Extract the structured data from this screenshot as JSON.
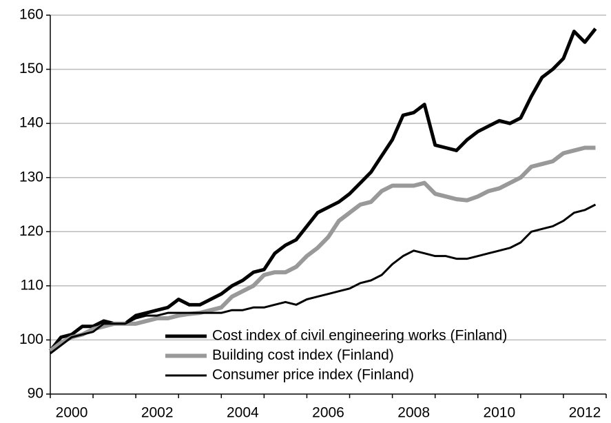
{
  "chart_data": {
    "type": "line",
    "x": [
      2000,
      2000.25,
      2000.5,
      2000.75,
      2001,
      2001.25,
      2001.5,
      2001.75,
      2002,
      2002.25,
      2002.5,
      2002.75,
      2003,
      2003.25,
      2003.5,
      2003.75,
      2004,
      2004.25,
      2004.5,
      2004.75,
      2005,
      2005.25,
      2005.5,
      2005.75,
      2006,
      2006.25,
      2006.5,
      2006.75,
      2007,
      2007.25,
      2007.5,
      2007.75,
      2008,
      2008.25,
      2008.5,
      2008.75,
      2009,
      2009.25,
      2009.5,
      2009.75,
      2010,
      2010.25,
      2010.5,
      2010.75,
      2011,
      2011.25,
      2011.5,
      2011.75,
      2012,
      2012.25,
      2012.5,
      2012.75
    ],
    "series": [
      {
        "name": "Cost index of civil engineering works (Finland)",
        "color": "#000000",
        "width": 5,
        "values": [
          98,
          100.5,
          101,
          102.5,
          102.5,
          103.5,
          103,
          103,
          104.5,
          105,
          105.5,
          106,
          107.5,
          106.5,
          106.5,
          107.5,
          108.5,
          110,
          111,
          112.5,
          113,
          116,
          117.5,
          118.5,
          121,
          123.5,
          124.5,
          125.5,
          127,
          129,
          131,
          134,
          137,
          141.5,
          142,
          143.5,
          136,
          135.5,
          135,
          137,
          138.5,
          139.5,
          140.5,
          140,
          141,
          145,
          148.5,
          150,
          152,
          157,
          155,
          157.5
        ]
      },
      {
        "name": "Building cost index (Finland)",
        "color": "#999999",
        "width": 6,
        "values": [
          98,
          99.5,
          100.5,
          101,
          102,
          102.5,
          103,
          103,
          103,
          103.5,
          104,
          104,
          104.5,
          104.8,
          105,
          105.5,
          106,
          108,
          109,
          110,
          112,
          112.5,
          112.5,
          113.5,
          115.5,
          117,
          119,
          122,
          123.5,
          125,
          125.5,
          127.5,
          128.5,
          128.5,
          128.5,
          129,
          127,
          126.5,
          126,
          125.8,
          126.5,
          127.5,
          128,
          129,
          130,
          132,
          132.5,
          133,
          134.5,
          135,
          135.5,
          135.5
        ]
      },
      {
        "name": "Consumer price index (Finland)",
        "color": "#000000",
        "width": 3,
        "values": [
          97.5,
          99,
          100.5,
          101,
          101.5,
          103,
          103,
          103,
          104,
          104.5,
          104.5,
          105,
          105,
          105,
          105,
          105,
          105,
          105.5,
          105.5,
          106,
          106,
          106.5,
          107,
          106.5,
          107.5,
          108,
          108.5,
          109,
          109.5,
          110.5,
          111,
          112,
          114,
          115.5,
          116.5,
          116,
          115.5,
          115.5,
          115,
          115,
          115.5,
          116,
          116.5,
          117,
          118,
          120,
          120.5,
          121,
          122,
          123.5,
          124,
          125
        ]
      }
    ],
    "xlim": [
      2000,
      2013
    ],
    "xticks": [
      {
        "value": 2000.5,
        "label": "2000"
      },
      {
        "value": 2002.5,
        "label": "2002"
      },
      {
        "value": 2004.5,
        "label": "2004"
      },
      {
        "value": 2006.5,
        "label": "2006"
      },
      {
        "value": 2008.5,
        "label": "2008"
      },
      {
        "value": 2010.5,
        "label": "2010"
      },
      {
        "value": 2012.5,
        "label": "2012"
      }
    ],
    "xminorticks": [
      2000,
      2001,
      2002,
      2003,
      2004,
      2005,
      2006,
      2007,
      2008,
      2009,
      2010,
      2011,
      2012,
      2013
    ],
    "ylim": [
      90,
      160
    ],
    "yticks": [
      90,
      100,
      110,
      120,
      130,
      140,
      150,
      160
    ],
    "grid": true,
    "legend": "lower right"
  }
}
